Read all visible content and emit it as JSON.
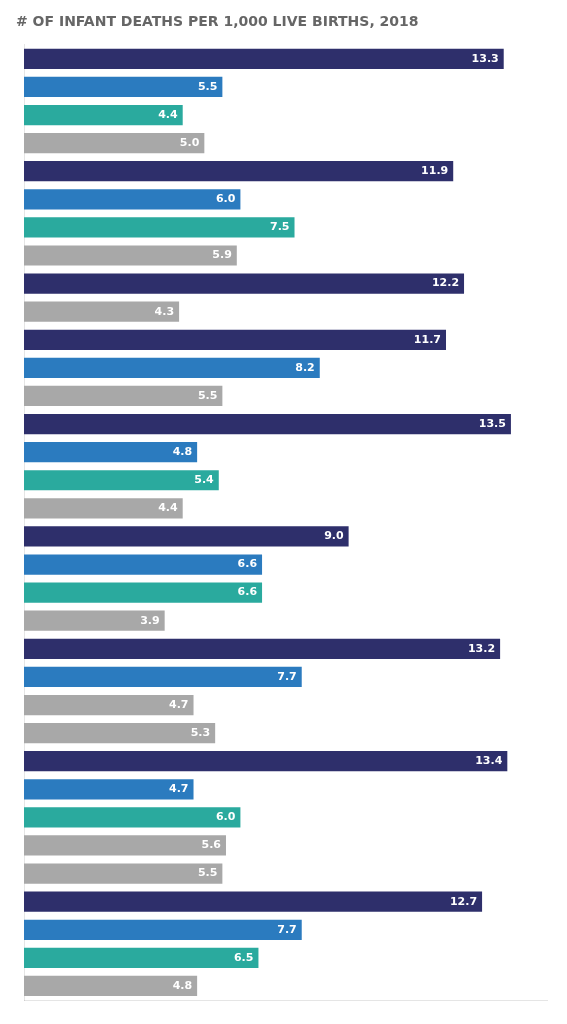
{
  "chart_data": {
    "type": "bar",
    "orientation": "horizontal",
    "title": "# OF INFANT DEATHS PER 1,000 LIVE BIRTHS, 2018",
    "categories": [
      null,
      null,
      null,
      null,
      null,
      null,
      null,
      null,
      null,
      null,
      null,
      null,
      null,
      null,
      null,
      null,
      null,
      null,
      null,
      null,
      null,
      null,
      null,
      null,
      null,
      null,
      null,
      null,
      null,
      null,
      null,
      null,
      null,
      null
    ],
    "values": [
      13.3,
      5.5,
      4.4,
      5.0,
      11.9,
      6.0,
      7.5,
      5.9,
      12.2,
      4.3,
      11.7,
      8.2,
      5.5,
      13.5,
      4.8,
      5.4,
      4.4,
      9.0,
      6.6,
      6.6,
      3.9,
      13.2,
      7.7,
      4.7,
      5.3,
      13.4,
      4.7,
      6.0,
      5.6,
      5.5,
      12.7,
      7.7,
      6.5,
      4.8
    ],
    "value_labels": [
      "13.3",
      "5.5",
      "4.4",
      "5.0",
      "11.9",
      "6.0",
      "7.5",
      "5.9",
      "12.2",
      "4.3",
      "11.7",
      "8.2",
      "5.5",
      "13.5",
      "4.8",
      "5.4",
      "4.4",
      "9.0",
      "6.6",
      "6.6",
      "3.9",
      "13.2",
      "7.7",
      "4.7",
      "5.3",
      "13.4",
      "4.7",
      "6.0",
      "5.6",
      "5.5",
      "12.7",
      "7.7",
      "6.5",
      "4.8"
    ],
    "colors": [
      "#2e2f6b",
      "#2b7bbf",
      "#2aaa9e",
      "#a8a8a8",
      "#2e2f6b",
      "#2b7bbf",
      "#2aaa9e",
      "#a8a8a8",
      "#2e2f6b",
      "#a8a8a8",
      "#2e2f6b",
      "#2b7bbf",
      "#a8a8a8",
      "#2e2f6b",
      "#2b7bbf",
      "#2aaa9e",
      "#a8a8a8",
      "#2e2f6b",
      "#2b7bbf",
      "#2aaa9e",
      "#a8a8a8",
      "#2e2f6b",
      "#2b7bbf",
      "#a8a8a8",
      "#a8a8a8",
      "#2e2f6b",
      "#2b7bbf",
      "#2aaa9e",
      "#a8a8a8",
      "#a8a8a8",
      "#2e2f6b",
      "#2b7bbf",
      "#2aaa9e",
      "#a8a8a8"
    ],
    "xlim": [
      0,
      14.5
    ],
    "grid": false,
    "tick_labels": false,
    "data_labels": true
  }
}
